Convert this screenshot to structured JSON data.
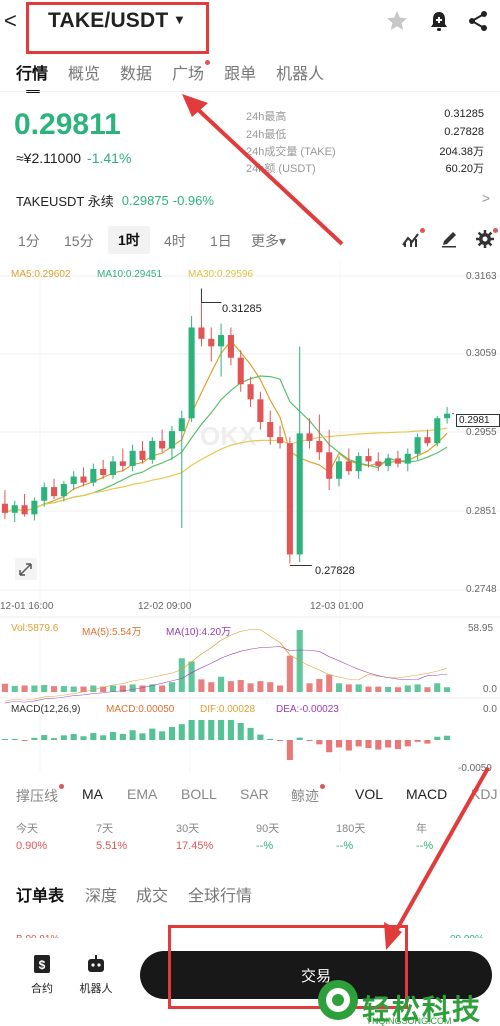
{
  "header": {
    "back_glyph": "<",
    "pair": "TAKE/USDT",
    "caret_glyph": "▼"
  },
  "tabs": [
    {
      "label": "行情",
      "active": true
    },
    {
      "label": "概览"
    },
    {
      "label": "数据"
    },
    {
      "label": "广场",
      "dot": true
    },
    {
      "label": "跟单"
    },
    {
      "label": "机器人"
    }
  ],
  "price": {
    "last": "0.29811",
    "cny": "≈¥2.11000",
    "change": "-1.41%"
  },
  "stats": [
    {
      "label": "24h最高",
      "value": "0.31285"
    },
    {
      "label": "24h最低",
      "value": "0.27828"
    },
    {
      "label": "24h成交量 (TAKE)",
      "value": "204.38万"
    },
    {
      "label": "24h额 (USDT)",
      "value": "60.20万"
    }
  ],
  "perp": {
    "name": "TAKEUSDT 永续",
    "price": "0.29875",
    "change": "-0.96%",
    "arrow": ">"
  },
  "intervals": [
    {
      "label": "1分"
    },
    {
      "label": "15分"
    },
    {
      "label": "1时",
      "active": true
    },
    {
      "label": "4时"
    },
    {
      "label": "1日"
    },
    {
      "label": "更多▾"
    }
  ],
  "chart_labels": {
    "ma5": "MA5:0.29602",
    "ma10": "MA10:0.29451",
    "ma30": "MA30:0.29596",
    "price_ticks": [
      "0.3163",
      "0.3059",
      "0.2955",
      "0.2851",
      "0.2748"
    ],
    "high_marker": "0.31285",
    "low_marker": "0.27828",
    "last_marker": "0.2981",
    "time_ticks": [
      "12-01 16:00",
      "12-02 09:00",
      "12-03 01:00"
    ],
    "vol": "Vol:5879.6",
    "vol_ma5": "MA(5):5.54万",
    "vol_ma10": "MA(10):4.20万",
    "vol_ticks": [
      "58.95",
      "0.0"
    ],
    "macd_header": "MACD(12,26,9)",
    "macd_val": "MACD:0.00050",
    "dif_val": "DIF:0.00028",
    "dea_val": "DEA:-0.00023",
    "macd_ticks": [
      "0.0",
      "-0.0059"
    ],
    "watermark": "OKX"
  },
  "chart_data": {
    "type": "candlestick",
    "candles": [
      {
        "o": 0.2862,
        "h": 0.288,
        "l": 0.2842,
        "c": 0.285
      },
      {
        "o": 0.285,
        "h": 0.2866,
        "l": 0.2838,
        "c": 0.286
      },
      {
        "o": 0.286,
        "h": 0.2875,
        "l": 0.2845,
        "c": 0.2848
      },
      {
        "o": 0.2848,
        "h": 0.287,
        "l": 0.284,
        "c": 0.2866
      },
      {
        "o": 0.2866,
        "h": 0.289,
        "l": 0.2858,
        "c": 0.2884
      },
      {
        "o": 0.2884,
        "h": 0.2895,
        "l": 0.2868,
        "c": 0.2872
      },
      {
        "o": 0.2872,
        "h": 0.2892,
        "l": 0.2865,
        "c": 0.2888
      },
      {
        "o": 0.2888,
        "h": 0.2905,
        "l": 0.288,
        "c": 0.2898
      },
      {
        "o": 0.2898,
        "h": 0.291,
        "l": 0.2885,
        "c": 0.289
      },
      {
        "o": 0.289,
        "h": 0.2915,
        "l": 0.2885,
        "c": 0.2908
      },
      {
        "o": 0.2908,
        "h": 0.292,
        "l": 0.2895,
        "c": 0.29
      },
      {
        "o": 0.29,
        "h": 0.2925,
        "l": 0.2895,
        "c": 0.2918
      },
      {
        "o": 0.2918,
        "h": 0.2935,
        "l": 0.2905,
        "c": 0.2912
      },
      {
        "o": 0.2912,
        "h": 0.294,
        "l": 0.2905,
        "c": 0.2932
      },
      {
        "o": 0.2932,
        "h": 0.2945,
        "l": 0.2915,
        "c": 0.292
      },
      {
        "o": 0.292,
        "h": 0.295,
        "l": 0.2915,
        "c": 0.2945
      },
      {
        "o": 0.2945,
        "h": 0.296,
        "l": 0.293,
        "c": 0.2935
      },
      {
        "o": 0.2935,
        "h": 0.2965,
        "l": 0.292,
        "c": 0.2958
      },
      {
        "o": 0.2958,
        "h": 0.2985,
        "l": 0.283,
        "c": 0.2975
      },
      {
        "o": 0.2975,
        "h": 0.311,
        "l": 0.297,
        "c": 0.3095
      },
      {
        "o": 0.3095,
        "h": 0.3128,
        "l": 0.307,
        "c": 0.308
      },
      {
        "o": 0.308,
        "h": 0.3095,
        "l": 0.305,
        "c": 0.307
      },
      {
        "o": 0.307,
        "h": 0.31,
        "l": 0.303,
        "c": 0.3085
      },
      {
        "o": 0.3085,
        "h": 0.3095,
        "l": 0.3045,
        "c": 0.3055
      },
      {
        "o": 0.3055,
        "h": 0.3065,
        "l": 0.301,
        "c": 0.302
      },
      {
        "o": 0.302,
        "h": 0.303,
        "l": 0.299,
        "c": 0.3
      },
      {
        "o": 0.3,
        "h": 0.301,
        "l": 0.296,
        "c": 0.297
      },
      {
        "o": 0.297,
        "h": 0.2985,
        "l": 0.294,
        "c": 0.295
      },
      {
        "o": 0.295,
        "h": 0.2965,
        "l": 0.2935,
        "c": 0.2942
      },
      {
        "o": 0.2942,
        "h": 0.295,
        "l": 0.2783,
        "c": 0.2795
      },
      {
        "o": 0.2795,
        "h": 0.307,
        "l": 0.2785,
        "c": 0.2955
      },
      {
        "o": 0.2955,
        "h": 0.2975,
        "l": 0.2935,
        "c": 0.2945
      },
      {
        "o": 0.2945,
        "h": 0.298,
        "l": 0.292,
        "c": 0.293
      },
      {
        "o": 0.293,
        "h": 0.296,
        "l": 0.288,
        "c": 0.2895
      },
      {
        "o": 0.2895,
        "h": 0.2925,
        "l": 0.2885,
        "c": 0.2918
      },
      {
        "o": 0.2918,
        "h": 0.2935,
        "l": 0.29,
        "c": 0.2905
      },
      {
        "o": 0.2905,
        "h": 0.293,
        "l": 0.2895,
        "c": 0.2925
      },
      {
        "o": 0.2925,
        "h": 0.2935,
        "l": 0.291,
        "c": 0.2918
      },
      {
        "o": 0.2918,
        "h": 0.293,
        "l": 0.2905,
        "c": 0.2912
      },
      {
        "o": 0.2912,
        "h": 0.2928,
        "l": 0.2905,
        "c": 0.2922
      },
      {
        "o": 0.2922,
        "h": 0.2932,
        "l": 0.291,
        "c": 0.2915
      },
      {
        "o": 0.2915,
        "h": 0.2935,
        "l": 0.2905,
        "c": 0.2928
      },
      {
        "o": 0.2928,
        "h": 0.2955,
        "l": 0.292,
        "c": 0.295
      },
      {
        "o": 0.295,
        "h": 0.296,
        "l": 0.2938,
        "c": 0.2942
      },
      {
        "o": 0.2942,
        "h": 0.2978,
        "l": 0.2938,
        "c": 0.2975
      },
      {
        "o": 0.2975,
        "h": 0.299,
        "l": 0.2968,
        "c": 0.2981
      }
    ],
    "ylim": [
      0.2748,
      0.3163
    ]
  },
  "indicators": [
    {
      "label": "撑压线",
      "dot": true
    },
    {
      "label": "MA",
      "on": true
    },
    {
      "label": "EMA"
    },
    {
      "label": "BOLL"
    },
    {
      "label": "SAR"
    },
    {
      "label": "鲸迹",
      "dot": true
    },
    {
      "label": "VOL",
      "on": true
    },
    {
      "label": "MACD",
      "on": true
    },
    {
      "label": "KDJ"
    }
  ],
  "periods": [
    {
      "label": "今天",
      "value": "0.90%",
      "color": "#e25555"
    },
    {
      "label": "7天",
      "value": "5.51%",
      "color": "#e25555"
    },
    {
      "label": "30天",
      "value": "17.45%",
      "color": "#e25555"
    },
    {
      "label": "90天",
      "value": "--%",
      "color": "#2bb37b"
    },
    {
      "label": "180天",
      "value": "--%",
      "color": "#2bb37b"
    },
    {
      "label": "年",
      "value": "--%",
      "color": "#2bb37b"
    }
  ],
  "lower_tabs": [
    {
      "label": "订单表",
      "active": true
    },
    {
      "label": "深度"
    },
    {
      "label": "成交"
    },
    {
      "label": "全球行情"
    }
  ],
  "depth_preview": {
    "left": "B 90.91%",
    "right": "09.09%"
  },
  "bottom": {
    "contract": "合约",
    "robot": "机器人",
    "trade": "交易"
  },
  "watermark": {
    "brand": "轻松科技",
    "url": "YNQINGSONG.COM"
  },
  "colors": {
    "up": "#2bb37b",
    "down": "#e25555",
    "annotation": "#e23b3b"
  }
}
